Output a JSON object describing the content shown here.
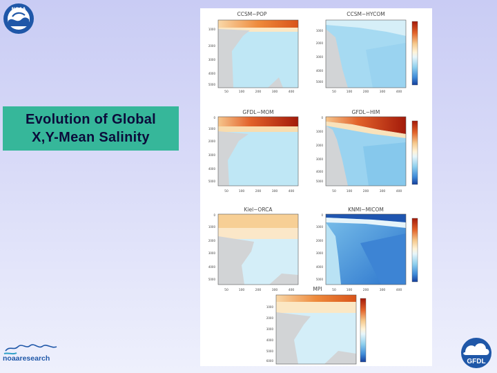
{
  "slide": {
    "title_lines": [
      "Evolution of Global",
      "X,Y-Mean Salinity"
    ]
  },
  "logos": {
    "noaa_badge": "NOAA",
    "noaa_research": "noaaresearch",
    "gfdl": "GFDL"
  },
  "figure": {
    "panels": [
      {
        "title": "CCSM−POP"
      },
      {
        "title": "CCSM−HYCOM"
      },
      {
        "title": "GFDL−MOM"
      },
      {
        "title": "GFDL−HIM"
      },
      {
        "title": "Kiel−ORCA"
      },
      {
        "title": "KNMI−MICOM"
      },
      {
        "title": "MPI"
      }
    ],
    "x_ticks": [
      "50",
      "100",
      "200",
      "300",
      "400"
    ]
  },
  "colors": {
    "background_top": "#c9ccf4",
    "title_box": "#36b79a",
    "title_text": "#0b0b3a",
    "salty": "#d9541a",
    "fresh": "#3f8bd8"
  }
}
